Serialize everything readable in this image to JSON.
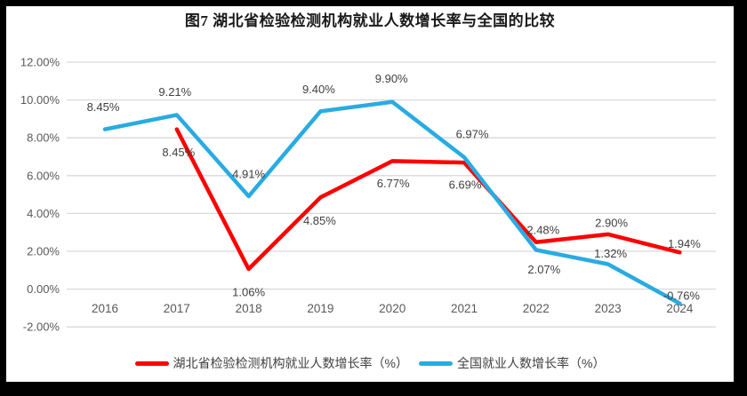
{
  "title": "图7 湖北省检验检测机构就业人数增长率与全国的比较",
  "colors": {
    "page_border": "#000000",
    "panel_bg": "#ffffff",
    "gridline": "#d9d9d9",
    "axis_text": "#595959",
    "data_label": "#404040",
    "series_hubei": "#ff0000",
    "series_national": "#29abe2"
  },
  "chart_data": {
    "type": "line",
    "categories": [
      "2016",
      "2017",
      "2018",
      "2019",
      "2020",
      "2021",
      "2022",
      "2023",
      "2024"
    ],
    "series": [
      {
        "name": "湖北省检验检测机构就业人数增长率（%）",
        "color": "#ff0000",
        "values": [
          null,
          8.45,
          1.06,
          4.85,
          6.77,
          6.69,
          2.48,
          2.9,
          1.94
        ],
        "labels": [
          null,
          "8.45%",
          "1.06%",
          "4.85%",
          "6.77%",
          "6.69%",
          "2.48%",
          "2.90%",
          "1.94%"
        ],
        "label_offsets": [
          null,
          [
            2,
            26
          ],
          [
            0,
            26
          ],
          [
            -1,
            26
          ],
          [
            1,
            25
          ],
          [
            1,
            25
          ],
          [
            8,
            -14
          ],
          [
            4,
            -13
          ],
          [
            5,
            -10
          ]
        ]
      },
      {
        "name": "全国就业人数增长率（%）",
        "color": "#29abe2",
        "values": [
          8.45,
          9.21,
          4.91,
          9.4,
          9.9,
          6.97,
          2.07,
          1.32,
          -0.76
        ],
        "labels": [
          "8.45%",
          "9.21%",
          "4.91%",
          "9.40%",
          "9.90%",
          "6.97%",
          "2.07%",
          "1.32%",
          "-0.76%"
        ],
        "label_offsets": [
          [
            -2,
            -25
          ],
          [
            -2,
            -26
          ],
          [
            0,
            -25
          ],
          [
            -2,
            -25
          ],
          [
            -1,
            -26
          ],
          [
            9,
            -26
          ],
          [
            9,
            22
          ],
          [
            3,
            -12
          ],
          [
            2,
            -9
          ]
        ]
      }
    ],
    "y_axis": {
      "min": -2,
      "max": 12,
      "step": 2,
      "tick_labels": [
        "12.00%",
        "10.00%",
        "8.00%",
        "6.00%",
        "4.00%",
        "2.00%",
        "0.00%",
        "-2.00%"
      ]
    },
    "grid": true,
    "legend_position": "bottom"
  }
}
